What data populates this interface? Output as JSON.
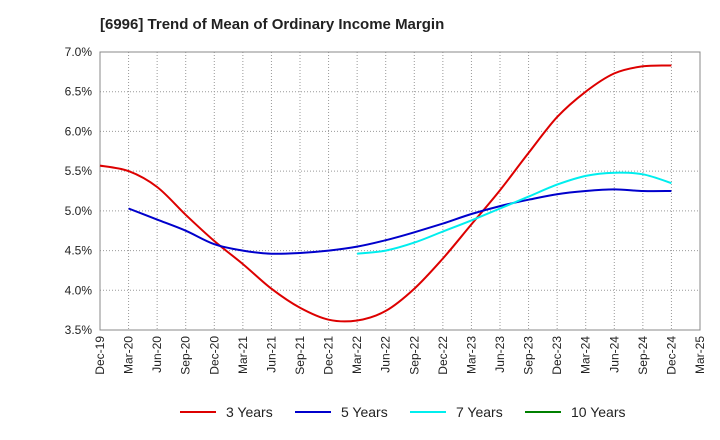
{
  "chart_data": {
    "type": "line",
    "title": "[6996]  Trend of Mean of Ordinary Income Margin",
    "xlabel": "",
    "ylabel": "",
    "ylim": [
      3.5,
      7.0
    ],
    "yticks": [
      "3.5%",
      "4.0%",
      "4.5%",
      "5.0%",
      "5.5%",
      "6.0%",
      "6.5%",
      "7.0%"
    ],
    "ytick_values": [
      3.5,
      4.0,
      4.5,
      5.0,
      5.5,
      6.0,
      6.5,
      7.0
    ],
    "categories": [
      "Dec-19",
      "Mar-20",
      "Jun-20",
      "Sep-20",
      "Dec-20",
      "Mar-21",
      "Jun-21",
      "Sep-21",
      "Dec-21",
      "Mar-22",
      "Jun-22",
      "Sep-22",
      "Dec-22",
      "Mar-23",
      "Jun-23",
      "Sep-23",
      "Dec-23",
      "Mar-24",
      "Jun-24",
      "Sep-24",
      "Dec-24",
      "Mar-25"
    ],
    "grid": true,
    "legend_position": "bottom",
    "series": [
      {
        "name": "3 Years",
        "color": "#dd0000",
        "values": [
          5.57,
          5.5,
          5.3,
          4.95,
          4.62,
          4.33,
          4.02,
          3.78,
          3.63,
          3.62,
          3.74,
          4.02,
          4.4,
          4.83,
          5.26,
          5.73,
          6.18,
          6.5,
          6.73,
          6.82,
          6.83,
          null
        ]
      },
      {
        "name": "5 Years",
        "color": "#0000cc",
        "values": [
          null,
          5.03,
          4.89,
          4.75,
          4.58,
          4.5,
          4.46,
          4.47,
          4.5,
          4.55,
          4.63,
          4.73,
          4.84,
          4.96,
          5.06,
          5.14,
          5.21,
          5.25,
          5.27,
          5.25,
          5.25,
          null
        ]
      },
      {
        "name": "7 Years",
        "color": "#00eeee",
        "values": [
          null,
          null,
          null,
          null,
          null,
          null,
          null,
          null,
          null,
          4.46,
          4.5,
          4.6,
          4.74,
          4.88,
          5.03,
          5.18,
          5.33,
          5.44,
          5.48,
          5.46,
          5.35,
          null
        ]
      },
      {
        "name": "10 Years",
        "color": "#008000",
        "values": [
          null,
          null,
          null,
          null,
          null,
          null,
          null,
          null,
          null,
          null,
          null,
          null,
          null,
          null,
          null,
          null,
          null,
          null,
          null,
          null,
          null,
          null
        ]
      }
    ]
  }
}
